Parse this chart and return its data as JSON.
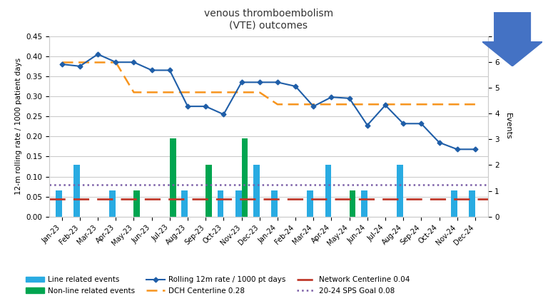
{
  "title": "venous thromboembolism\n(VTE) outcomes",
  "ylabel_left": "12-m rolling rate / 1000 patient days",
  "ylabel_right": "Events",
  "categories": [
    "Jan-23",
    "Feb-23",
    "Mar-23",
    "Apr-23",
    "May-23",
    "Jun-23",
    "Jul-23",
    "Aug-23",
    "Sep-23",
    "Oct-23",
    "Nov-23",
    "Dec-23",
    "Jan-24",
    "Feb-24",
    "Mar-24",
    "Apr-24",
    "May-24",
    "Jun-24",
    "Jul-24",
    "Aug-24",
    "Sep-24",
    "Oct-24",
    "Nov-24",
    "Dec-24"
  ],
  "line_related": [
    0.065,
    0.13,
    0.0,
    0.065,
    0.0,
    0.0,
    0.0,
    0.065,
    0.0,
    0.065,
    0.065,
    0.13,
    0.065,
    0.0,
    0.065,
    0.13,
    0.0,
    0.065,
    0.0,
    0.13,
    0.0,
    0.0,
    0.065,
    0.065
  ],
  "non_line_related": [
    0.0,
    0.0,
    0.0,
    0.0,
    0.065,
    0.0,
    0.195,
    0.0,
    0.13,
    0.0,
    0.195,
    0.0,
    0.0,
    0.0,
    0.0,
    0.0,
    0.065,
    0.0,
    0.0,
    0.0,
    0.0,
    0.0,
    0.0,
    0.0
  ],
  "rolling_rate": [
    0.38,
    0.375,
    0.405,
    0.385,
    0.385,
    0.365,
    0.365,
    0.275,
    0.275,
    0.255,
    0.335,
    0.335,
    0.335,
    0.325,
    0.275,
    0.298,
    0.295,
    0.228,
    0.278,
    0.232,
    0.232,
    0.185,
    0.168,
    0.168
  ],
  "dch_segments": [
    {
      "x": [
        0,
        1,
        2,
        3
      ],
      "y": [
        0.385,
        0.385,
        0.385,
        0.385
      ]
    },
    {
      "x": [
        3,
        4,
        5,
        6,
        7,
        8,
        9,
        10,
        11
      ],
      "y": [
        0.385,
        0.31,
        0.31,
        0.31,
        0.31,
        0.31,
        0.31,
        0.31,
        0.31
      ]
    },
    {
      "x": [
        11,
        12,
        13,
        14,
        15,
        16,
        17,
        18,
        19,
        20,
        21,
        22,
        23
      ],
      "y": [
        0.31,
        0.28,
        0.28,
        0.28,
        0.28,
        0.28,
        0.28,
        0.28,
        0.28,
        0.28,
        0.28,
        0.28,
        0.28
      ]
    }
  ],
  "network_centerline": 0.045,
  "network_centerline_label": "Network Centerline 0.04",
  "sps_goal": 0.08,
  "sps_goal_label": "20-24 SPS Goal 0.08",
  "dch_centerline_label": "DCH Centerline 0.28",
  "ylim_left": [
    0.0,
    0.45
  ],
  "ylim_right": [
    0.0,
    7.0
  ],
  "yticks_left": [
    0.0,
    0.05,
    0.1,
    0.15,
    0.2,
    0.25,
    0.3,
    0.35,
    0.4,
    0.45
  ],
  "yticks_right": [
    0,
    1,
    2,
    3,
    4,
    5,
    6,
    7
  ],
  "bar_color_line": "#29ABE2",
  "bar_color_nonline": "#00A550",
  "line_color": "#1F5EA8",
  "dch_color": "#F7941D",
  "network_color": "#C0392B",
  "sps_color": "#7B5EA7",
  "arrow_color": "#4472C4",
  "background_color": "#FFFFFF",
  "grid_color": "#CCCCCC"
}
